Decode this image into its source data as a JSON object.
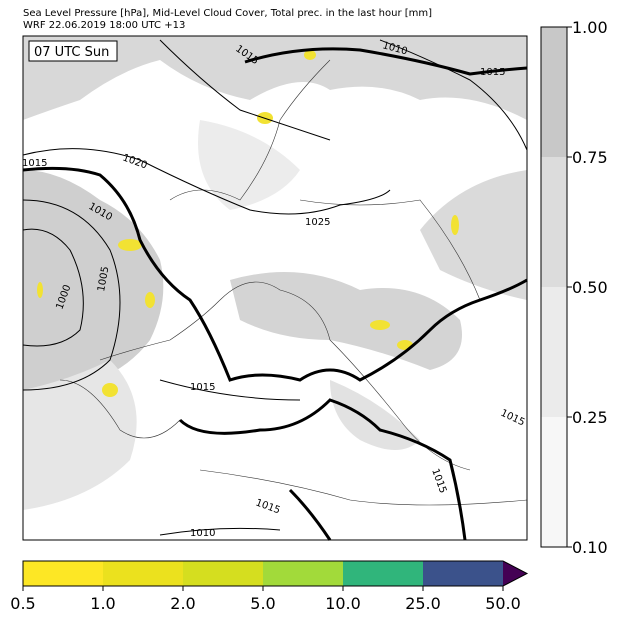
{
  "header": {
    "title_lines": [
      "Sea Level Pressure [hPa], Mid-Level Cloud Cover, Total prec. in the last hour [mm]",
      "WRF 22.06.2019 18:00 UTC +13"
    ]
  },
  "map": {
    "time_label": "07 UTC Sun",
    "isobar_labels": [
      "1015",
      "1010",
      "1015",
      "1020",
      "1015",
      "1010",
      "1025",
      "1005",
      "1000",
      "1015",
      "1015",
      "1015",
      "1015",
      "1010"
    ]
  },
  "colorbars": {
    "cloud_cover": {
      "ticks": [
        "1.00",
        "0.75",
        "0.50",
        "0.25",
        "0.10"
      ]
    },
    "precipitation": {
      "ticks": [
        "0.5",
        "1.0",
        "2.0",
        "5.0",
        "10.0",
        "25.0",
        "50.0"
      ]
    }
  }
}
